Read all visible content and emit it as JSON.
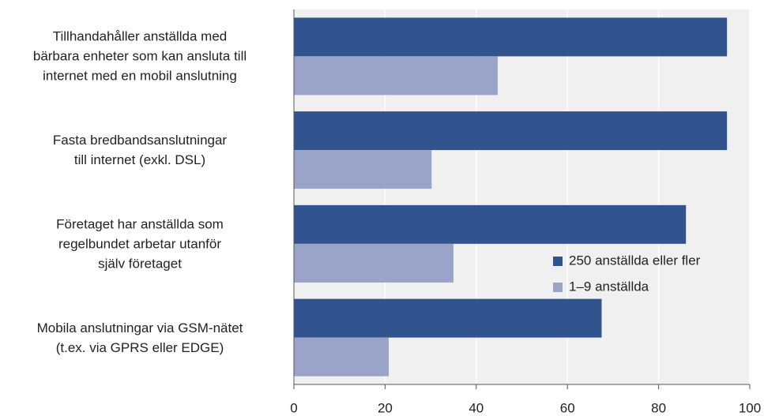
{
  "chart_data": {
    "type": "bar",
    "orientation": "horizontal",
    "categories": [
      "Tillhandahåller anställda med\nbärbara enheter som kan ansluta till\ninternet med en mobil anslutning",
      "Fasta bredbandsanslutningar\ntill internet (exkl. DSL)",
      "Företaget har anställda som\nregelbundet arbetar utanför\nsjälv företaget",
      "Mobila anslutningar via GSM-nätet\n(t.ex. via GPRS eller EDGE)"
    ],
    "series": [
      {
        "name": "250 anställda eller fler",
        "color": "#31548e",
        "values": [
          95,
          95,
          86,
          67.5
        ]
      },
      {
        "name": "1–9 anställda",
        "color": "#9aa3c8",
        "values": [
          44.7,
          30.2,
          35,
          20.8
        ]
      }
    ],
    "xlim": [
      0,
      100
    ],
    "xticks": [
      0,
      20,
      40,
      60,
      80,
      100
    ],
    "grid": true
  }
}
